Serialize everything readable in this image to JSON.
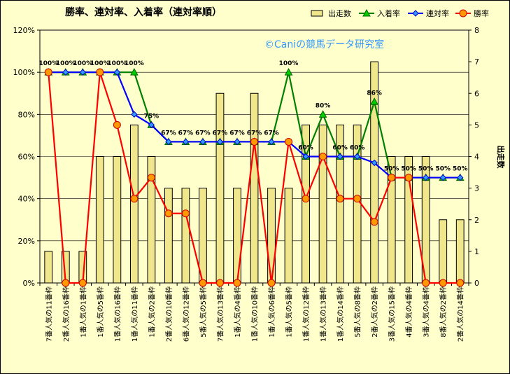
{
  "chart_data": {
    "type": "bar",
    "title": "勝率、連対率、入着率（連対率順）",
    "watermark": "©Caniの競馬データ研究室",
    "ylabel": "",
    "y2label": "出走数",
    "ylim": [
      0,
      120
    ],
    "y2lim": [
      0,
      8
    ],
    "y_ticks": [
      "0%",
      "20%",
      "40%",
      "60%",
      "80%",
      "100%",
      "120%"
    ],
    "y2_ticks": [
      "0",
      "1",
      "2",
      "3",
      "4",
      "5",
      "6",
      "7",
      "8"
    ],
    "legend_position": "top-right",
    "grid": true,
    "categories": [
      "7番人気の11番枠",
      "2番人気の16番枠",
      "1番人気の1番枠",
      "1番人気の5番枠",
      "1番人気の16番枠",
      "1番人気の11番枠",
      "1番人気の2番枠",
      "2番人気の10番枠",
      "6番人気の12番枠",
      "5番人気の5番枠",
      "7番人気の13番枠",
      "1番人気の4番枠",
      "1番人気の10番枠",
      "1番人気の6番枠",
      "1番人気の5番枠",
      "1番人気の12番枠",
      "1番人気の13番枠",
      "1番人気の14番枠",
      "5番人気の8番枠",
      "2番人気の2番枠",
      "3番人気の15番枠",
      "4番人気の4番枠",
      "3番人気の4番枠",
      "8番人気の2番枠",
      "2番人気の14番枠"
    ],
    "series": [
      {
        "name": "出走数",
        "kind": "bar",
        "axis": "right",
        "color": "#f0e68c",
        "values": [
          1,
          1,
          1,
          4,
          4,
          5,
          4,
          3,
          3,
          3,
          6,
          3,
          6,
          3,
          3,
          5,
          5,
          5,
          5,
          7,
          4,
          4,
          4,
          2,
          2
        ]
      },
      {
        "name": "入着率",
        "kind": "line",
        "marker": "triangle",
        "color": "#008000",
        "values": [
          100,
          100,
          100,
          100,
          100,
          100,
          75,
          67,
          67,
          67,
          67,
          67,
          67,
          67,
          100,
          60,
          80,
          60,
          60,
          86,
          50,
          50,
          50,
          50,
          50
        ]
      },
      {
        "name": "連対率",
        "kind": "line",
        "marker": "diamond",
        "color": "#0000ff",
        "values": [
          100,
          100,
          100,
          100,
          100,
          80,
          75,
          67,
          67,
          67,
          67,
          67,
          67,
          67,
          67,
          60,
          60,
          60,
          60,
          57,
          50,
          50,
          50,
          50,
          50
        ]
      },
      {
        "name": "勝率",
        "kind": "line",
        "marker": "circle",
        "color": "#ff0000",
        "values": [
          100,
          0,
          0,
          100,
          75,
          40,
          50,
          33,
          33,
          0,
          0,
          0,
          67,
          0,
          67,
          40,
          60,
          40,
          40,
          29,
          50,
          50,
          0,
          0,
          0
        ]
      }
    ],
    "data_labels": [
      "100%",
      "100%",
      "100%",
      "100%",
      "100%",
      "100%",
      "75%",
      "67%",
      "67%",
      "67%",
      "67%",
      "67%",
      "67%",
      "67%",
      "100%",
      "60%",
      "80%",
      "60%",
      "60%",
      "86%",
      "50%",
      "50%",
      "50%",
      "50%",
      "50%"
    ]
  }
}
